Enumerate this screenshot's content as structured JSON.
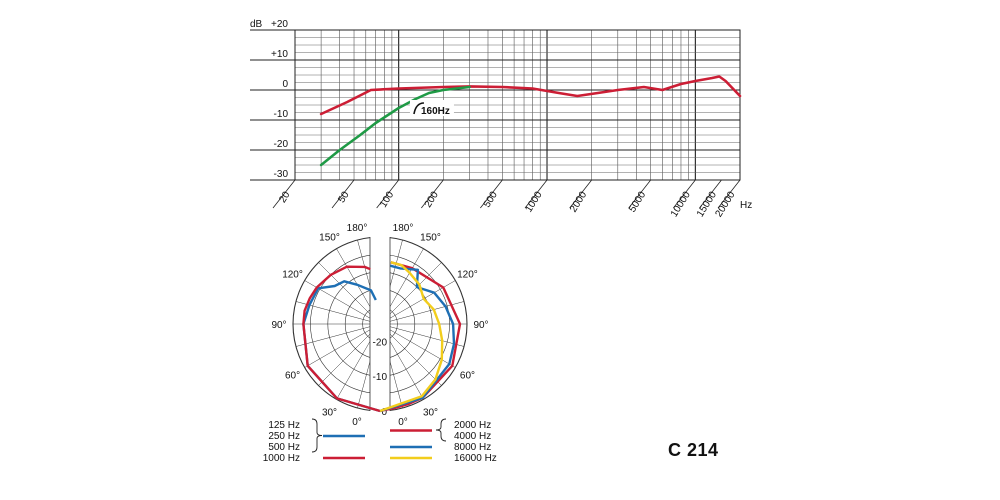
{
  "model_label": "C 214",
  "chart_data": [
    {
      "type": "line",
      "title": "",
      "xscale": "log",
      "xlim": [
        20,
        20000
      ],
      "ylim": [
        -30,
        20
      ],
      "grid": true,
      "ylabel_unit": "dB",
      "xlabel_unit": "Hz",
      "y_ticks": [
        "+20",
        "+10",
        "0",
        "-10",
        "-20",
        "-30"
      ],
      "x_ticks": [
        "20",
        "50",
        "100",
        "200",
        "500",
        "1000",
        "2000",
        "5000",
        "10000",
        "15000",
        "20000"
      ],
      "annotation": "160Hz",
      "colors": {
        "flat": "#cc1e35",
        "low_cut": "#1f9a46"
      },
      "series": [
        {
          "name": "",
          "color": "#cc1e35",
          "points": [
            [
              30,
              -8
            ],
            [
              45,
              -4
            ],
            [
              65,
              0
            ],
            [
              100,
              0.5
            ],
            [
              200,
              1
            ],
            [
              300,
              1.2
            ],
            [
              500,
              1
            ],
            [
              800,
              0.5
            ],
            [
              1200,
              -1
            ],
            [
              1600,
              -2
            ],
            [
              2200,
              -1
            ],
            [
              3000,
              0
            ],
            [
              4500,
              1
            ],
            [
              6000,
              0
            ],
            [
              8000,
              2
            ],
            [
              10000,
              3
            ],
            [
              13000,
              4
            ],
            [
              14500,
              4.5
            ],
            [
              16000,
              3
            ],
            [
              20000,
              -2
            ]
          ]
        },
        {
          "name": "",
          "color": "#1f9a46",
          "points": [
            [
              30,
              -25
            ],
            [
              40,
              -20
            ],
            [
              55,
              -15
            ],
            [
              70,
              -11
            ],
            [
              100,
              -6
            ],
            [
              130,
              -3
            ],
            [
              160,
              -1
            ],
            [
              200,
              0
            ],
            [
              300,
              1
            ]
          ]
        }
      ]
    },
    {
      "type": "polar",
      "angle_labels": [
        "180°",
        "150°",
        "120°",
        "90°",
        "60°",
        "30°",
        "0°"
      ],
      "radial_labels": [
        "-20",
        "-10",
        "0"
      ],
      "rlim": [
        -25,
        0
      ],
      "legend_left": {
        "groups": [
          {
            "labels": [
              "125 Hz",
              "250 Hz",
              "500 Hz"
            ],
            "color": "#1e6fb4"
          },
          {
            "labels": [
              "1000 Hz"
            ],
            "color": "#cc1e35"
          }
        ]
      },
      "legend_right": {
        "groups": [
          {
            "labels": [
              "2000 Hz",
              "4000 Hz"
            ],
            "color": "#cc1e35"
          },
          {
            "labels": [
              "8000 Hz"
            ],
            "color": "#1e6fb4"
          },
          {
            "labels": [
              "16000 Hz"
            ],
            "color": "#f2cd1c"
          }
        ]
      },
      "left_series": [
        {
          "name": "125 Hz / 250 Hz / 500 Hz",
          "color": "#1e6fb4",
          "points": [
            [
              0,
              0
            ],
            [
              30,
              -0.3
            ],
            [
              60,
              -1
            ],
            [
              90,
              -3
            ],
            [
              105,
              -4
            ],
            [
              120,
              -4.5
            ],
            [
              130,
              -8
            ],
            [
              140,
              -9
            ],
            [
              150,
              -12
            ],
            [
              165,
              -15
            ],
            [
              170,
              -18
            ]
          ]
        },
        {
          "name": "1000 Hz",
          "color": "#cc1e35",
          "points": [
            [
              0,
              0
            ],
            [
              30,
              -0.3
            ],
            [
              60,
              -1
            ],
            [
              90,
              -3
            ],
            [
              100,
              -3
            ],
            [
              110,
              -3.5
            ],
            [
              120,
              -4
            ],
            [
              135,
              -5
            ],
            [
              150,
              -6
            ],
            [
              165,
              -8
            ],
            [
              170,
              -9
            ]
          ]
        }
      ],
      "right_series": [
        {
          "name": "2000 Hz / 4000 Hz",
          "color": "#cc1e35",
          "points": [
            [
              0,
              0
            ],
            [
              10,
              -0.5
            ],
            [
              20,
              -0.6
            ],
            [
              30,
              -0.5
            ],
            [
              60,
              -1
            ],
            [
              90,
              -2
            ],
            [
              120,
              -4
            ],
            [
              150,
              -6.5
            ],
            [
              170,
              -7
            ]
          ]
        },
        {
          "name": "8000 Hz",
          "color": "#1e6fb4",
          "points": [
            [
              0,
              0
            ],
            [
              30,
              -0.5
            ],
            [
              60,
              -2
            ],
            [
              75,
              -3
            ],
            [
              90,
              -4
            ],
            [
              105,
              -5.5
            ],
            [
              120,
              -7
            ],
            [
              135,
              -10
            ],
            [
              145,
              -6
            ],
            [
              160,
              -8
            ],
            [
              170,
              -8
            ]
          ]
        },
        {
          "name": "16000 Hz",
          "color": "#f2cd1c",
          "points": [
            [
              0,
              0
            ],
            [
              30,
              -1
            ],
            [
              45,
              -2.5
            ],
            [
              60,
              -4.5
            ],
            [
              75,
              -6.5
            ],
            [
              90,
              -8
            ],
            [
              105,
              -9
            ],
            [
              120,
              -10.5
            ],
            [
              135,
              -9
            ],
            [
              150,
              -8
            ],
            [
              160,
              -7
            ],
            [
              170,
              -7
            ]
          ]
        }
      ]
    }
  ]
}
